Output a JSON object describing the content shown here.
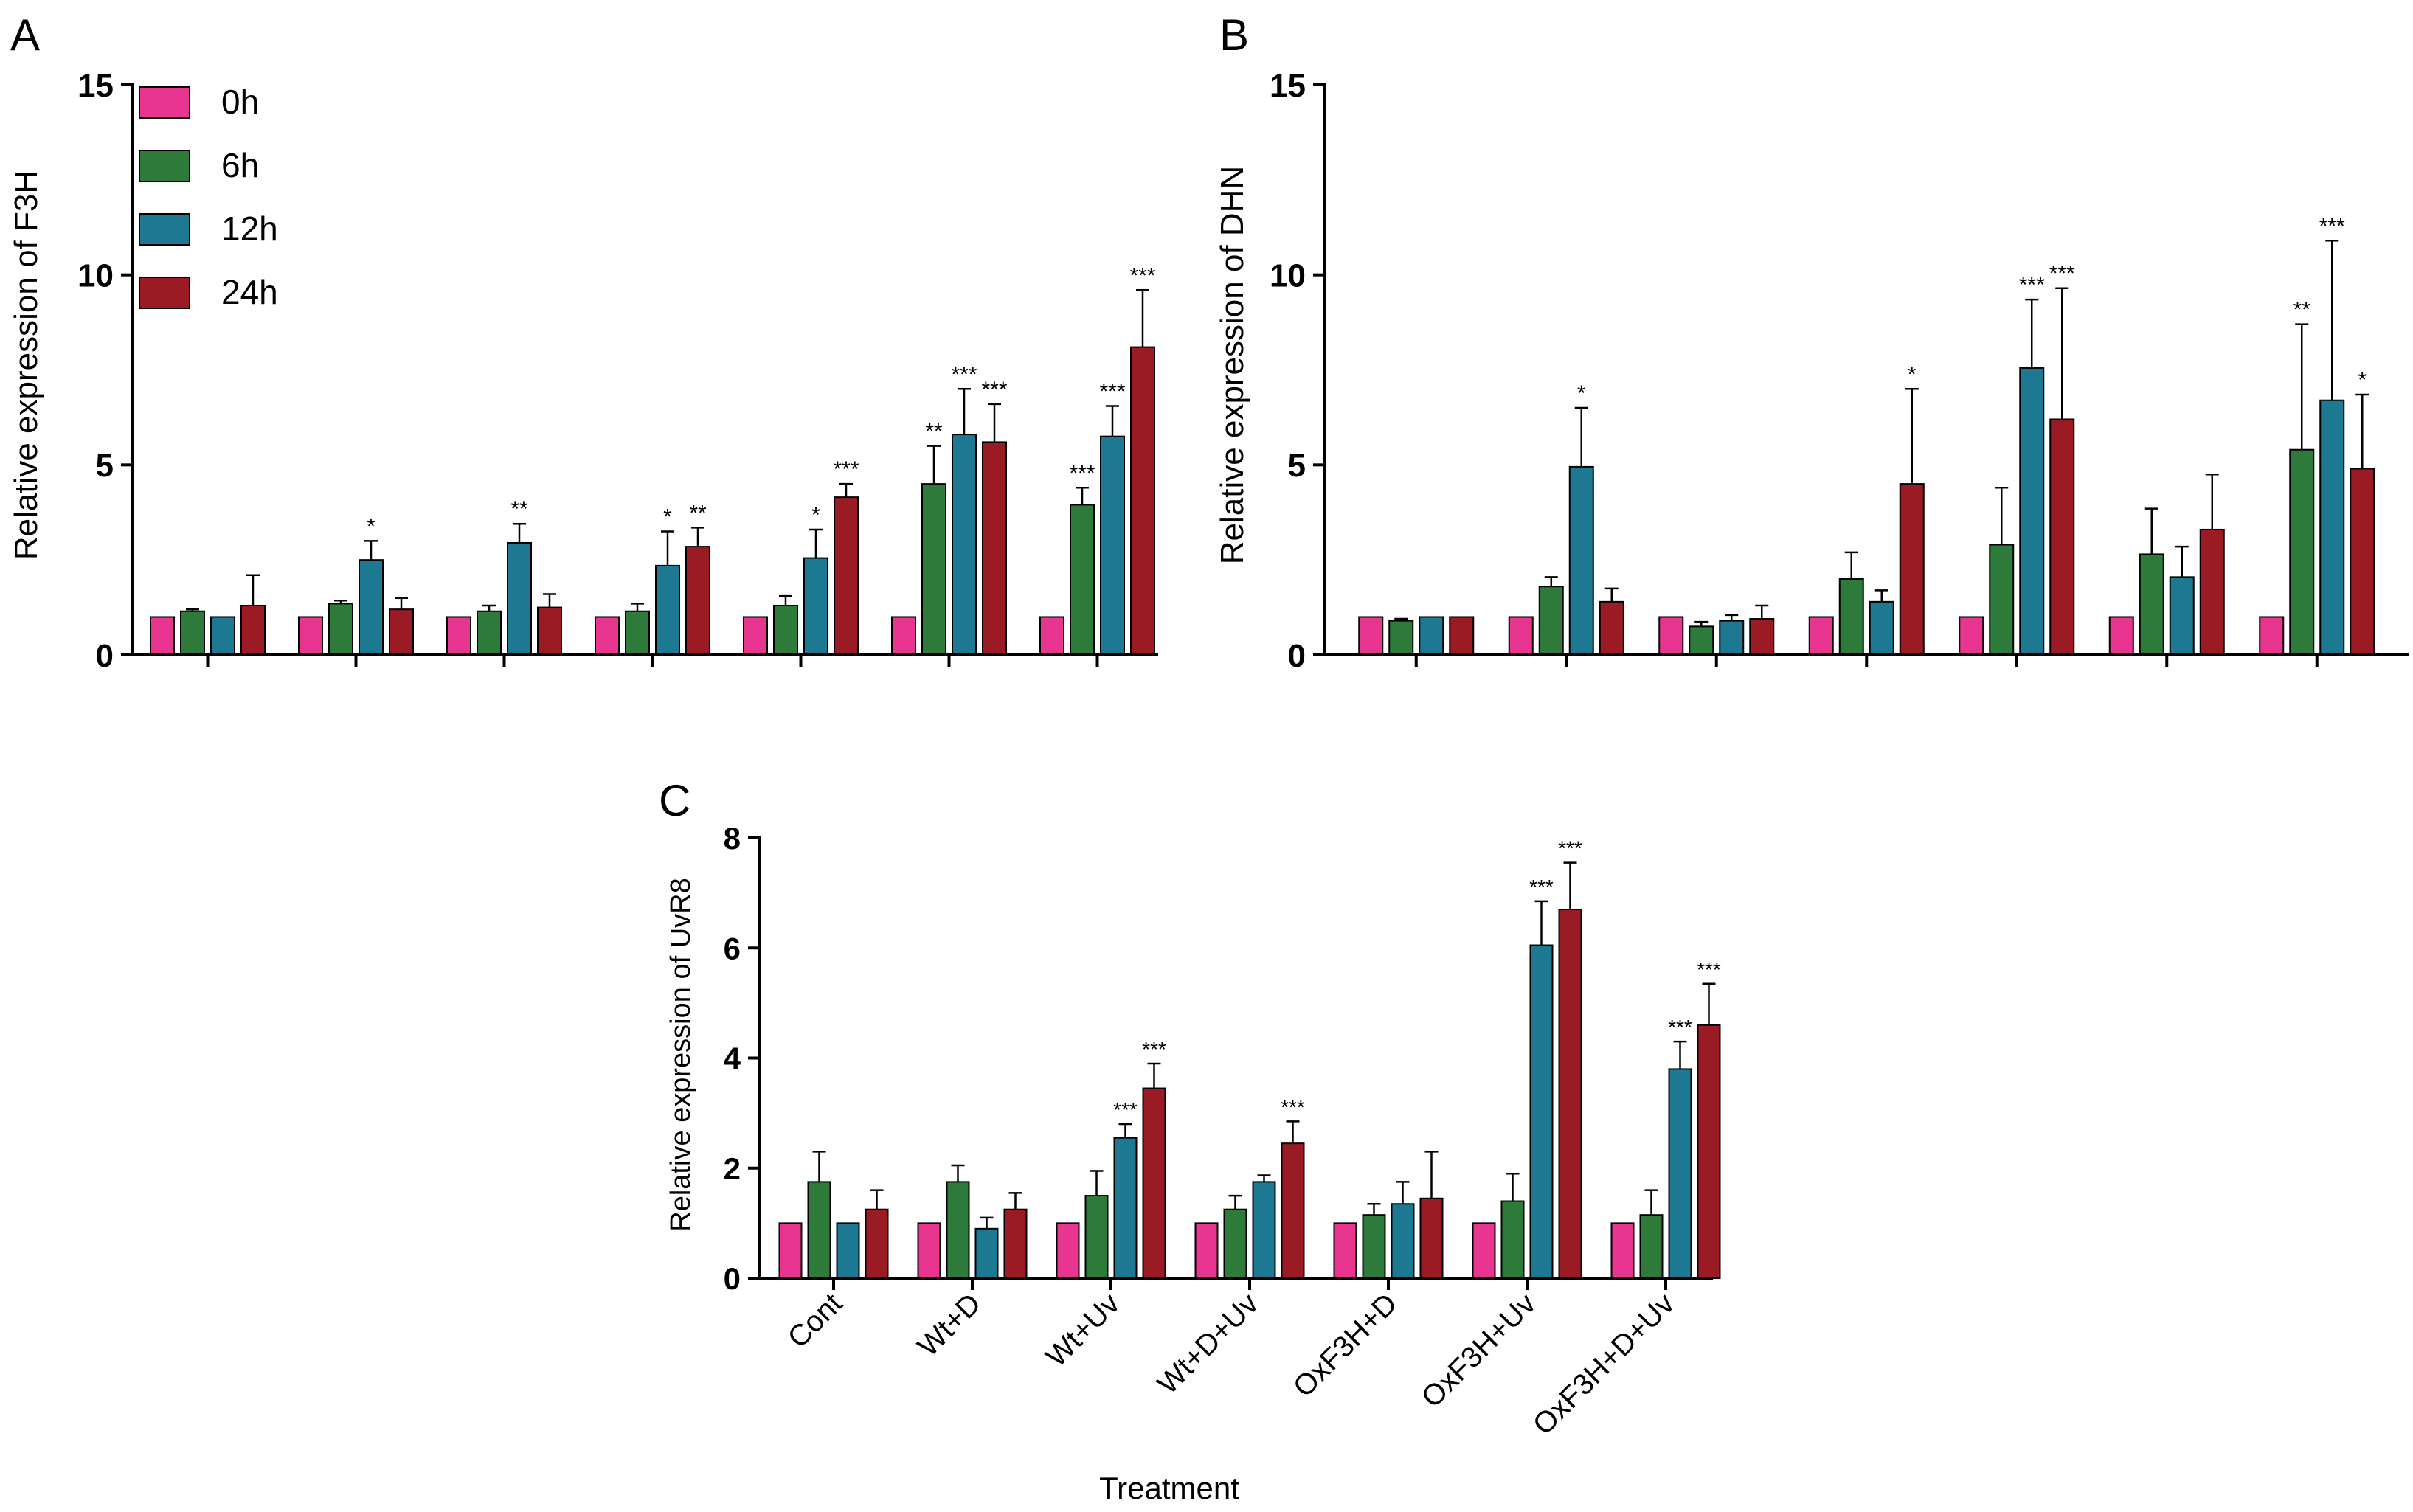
{
  "colors": {
    "0h": "#e8358f",
    "6h": "#2d7a3a",
    "12h": "#1d7891",
    "24h": "#9b1b24"
  },
  "legend": {
    "items": [
      "0h",
      "6h",
      "12h",
      "24h"
    ]
  },
  "x_title": "Treatment",
  "chart_data": [
    {
      "type": "bar",
      "panel_label": "A",
      "ylabel": "Relative expression of F3H",
      "ylim": [
        0,
        15
      ],
      "yticks": [
        0,
        5,
        10,
        15
      ],
      "categories": [
        "Cont",
        "Wt+D",
        "Wt+Uv",
        "Wt+D+Uv",
        "OxF3H+D",
        "OxF3H+Uv",
        "OxF3H+D+Uv"
      ],
      "show_category_labels": false,
      "series": [
        {
          "name": "0h",
          "values": [
            1,
            1,
            1,
            1,
            1,
            1,
            1
          ],
          "errors": [
            0,
            0,
            0,
            0,
            0,
            0,
            0
          ],
          "sig": [
            "",
            "",
            "",
            "",
            "",
            "",
            ""
          ]
        },
        {
          "name": "6h",
          "values": [
            1.15,
            1.35,
            1.15,
            1.15,
            1.3,
            4.5,
            3.95
          ],
          "errors": [
            0.05,
            0.08,
            0.15,
            0.2,
            0.25,
            1.0,
            0.45
          ],
          "sig": [
            "",
            "",
            "",
            "",
            "",
            "**",
            "***"
          ]
        },
        {
          "name": "12h",
          "values": [
            1,
            2.5,
            2.95,
            2.35,
            2.55,
            5.8,
            5.75
          ],
          "errors": [
            0,
            0.5,
            0.5,
            0.9,
            0.75,
            1.2,
            0.8
          ],
          "sig": [
            "",
            "*",
            "**",
            "*",
            "*",
            "***",
            "***"
          ]
        },
        {
          "name": "24h",
          "values": [
            1.3,
            1.2,
            1.25,
            2.85,
            4.15,
            5.6,
            8.1
          ],
          "errors": [
            0.8,
            0.3,
            0.35,
            0.5,
            0.35,
            1.0,
            1.5
          ],
          "sig": [
            "",
            "",
            "",
            "**",
            "***",
            "***",
            "***"
          ]
        }
      ]
    },
    {
      "type": "bar",
      "panel_label": "B",
      "ylabel": "Relative expression of DHN",
      "ylim": [
        0,
        15
      ],
      "yticks": [
        0,
        5,
        10,
        15
      ],
      "categories": [
        "Cont",
        "Wt+D",
        "Wt+Uv",
        "Wt+D+Uv",
        "OxF3H+D",
        "OxF3H+Uv",
        "OxF3H+D+Uv"
      ],
      "show_category_labels": false,
      "series": [
        {
          "name": "0h",
          "values": [
            1,
            1,
            1,
            1,
            1,
            1,
            1
          ],
          "errors": [
            0,
            0,
            0,
            0,
            0,
            0,
            0
          ],
          "sig": [
            "",
            "",
            "",
            "",
            "",
            "",
            ""
          ]
        },
        {
          "name": "6h",
          "values": [
            0.9,
            1.8,
            0.75,
            2.0,
            2.9,
            2.65,
            5.4
          ],
          "errors": [
            0.05,
            0.25,
            0.12,
            0.7,
            1.5,
            1.2,
            3.3
          ],
          "sig": [
            "",
            "",
            "",
            "",
            "",
            "",
            "**"
          ]
        },
        {
          "name": "12h",
          "values": [
            1,
            4.95,
            0.9,
            1.4,
            7.55,
            2.05,
            6.7
          ],
          "errors": [
            0,
            1.55,
            0.15,
            0.3,
            1.8,
            0.8,
            4.2
          ],
          "sig": [
            "",
            "*",
            "",
            "",
            "***",
            "",
            "***"
          ]
        },
        {
          "name": "24h",
          "values": [
            1,
            1.4,
            0.95,
            4.5,
            6.2,
            3.3,
            4.9
          ],
          "errors": [
            0,
            0.35,
            0.35,
            2.5,
            3.45,
            1.45,
            1.95
          ],
          "sig": [
            "",
            "",
            "",
            "*",
            "***",
            "",
            "*"
          ]
        }
      ]
    },
    {
      "type": "bar",
      "panel_label": "C",
      "ylabel": "Relative expression of UvR8",
      "ylim": [
        0,
        8
      ],
      "yticks": [
        0,
        2,
        4,
        6,
        8
      ],
      "categories": [
        "Cont",
        "Wt+D",
        "Wt+Uv",
        "Wt+D+Uv",
        "OxF3H+D",
        "OxF3H+Uv",
        "OxF3H+D+Uv"
      ],
      "show_category_labels": true,
      "series": [
        {
          "name": "0h",
          "values": [
            1,
            1,
            1,
            1,
            1,
            1,
            1
          ],
          "errors": [
            0,
            0,
            0,
            0,
            0,
            0,
            0
          ],
          "sig": [
            "",
            "",
            "",
            "",
            "",
            "",
            ""
          ]
        },
        {
          "name": "6h",
          "values": [
            1.75,
            1.75,
            1.5,
            1.25,
            1.15,
            1.4,
            1.15
          ],
          "errors": [
            0.55,
            0.3,
            0.45,
            0.25,
            0.2,
            0.5,
            0.45
          ],
          "sig": [
            "",
            "",
            "",
            "",
            "",
            "",
            ""
          ]
        },
        {
          "name": "12h",
          "values": [
            1,
            0.9,
            2.55,
            1.75,
            1.35,
            6.05,
            3.8
          ],
          "errors": [
            0,
            0.2,
            0.25,
            0.12,
            0.4,
            0.8,
            0.5
          ],
          "sig": [
            "",
            "",
            "***",
            "",
            "",
            "***",
            "***"
          ]
        },
        {
          "name": "24h",
          "values": [
            1.25,
            1.25,
            3.45,
            2.45,
            1.45,
            6.7,
            4.6
          ],
          "errors": [
            0.35,
            0.3,
            0.45,
            0.4,
            0.85,
            0.85,
            0.75
          ],
          "sig": [
            "",
            "",
            "***",
            "***",
            "",
            "***",
            "***"
          ]
        }
      ]
    }
  ]
}
